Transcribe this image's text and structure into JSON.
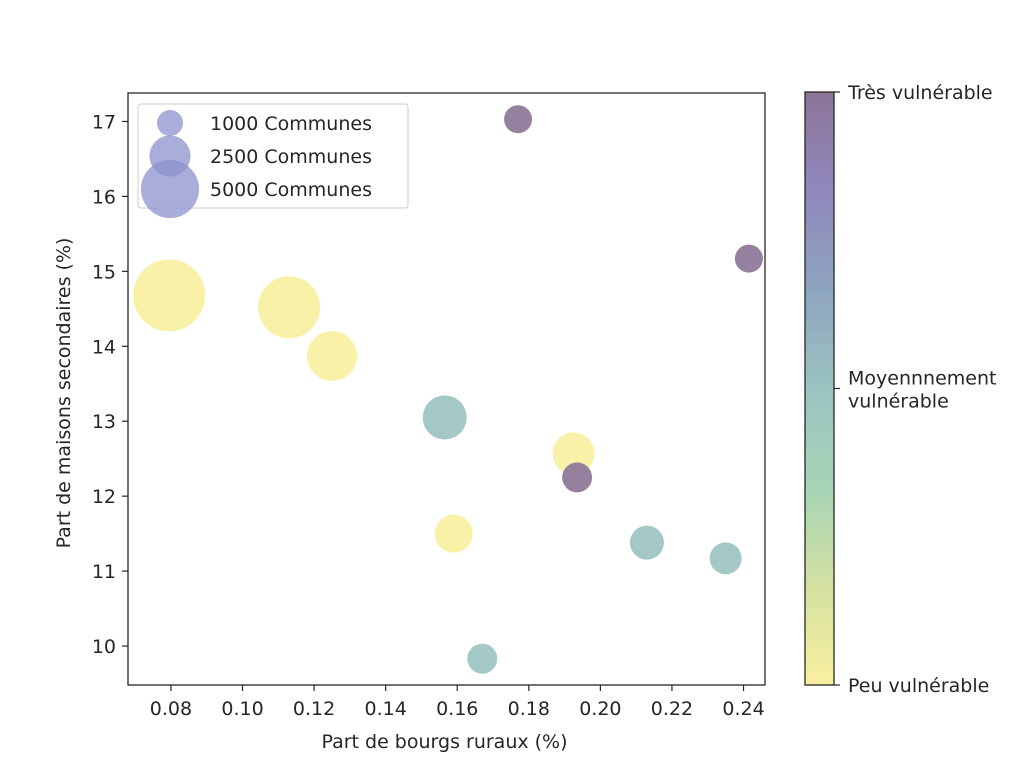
{
  "chart_data": {
    "type": "scatter",
    "title": "",
    "xlabel": "Part de bourgs ruraux (%)",
    "ylabel": "Part de maisons secondaires (%)",
    "xlim": [
      0.068,
      0.246
    ],
    "ylim": [
      9.48,
      17.38
    ],
    "xticks": [
      0.08,
      0.1,
      0.12,
      0.14,
      0.16,
      0.18,
      0.2,
      0.22,
      0.24
    ],
    "xtick_labels": [
      "0.08",
      "0.10",
      "0.12",
      "0.14",
      "0.16",
      "0.18",
      "0.20",
      "0.22",
      "0.24"
    ],
    "yticks": [
      10,
      11,
      12,
      13,
      14,
      15,
      16,
      17
    ],
    "ytick_labels": [
      "10",
      "11",
      "12",
      "13",
      "14",
      "15",
      "16",
      "17"
    ],
    "grid": false,
    "size_legend": {
      "placement": "upper-left",
      "color": "#8c91cc",
      "entries": [
        {
          "label": "1000 Communes",
          "size": 1000
        },
        {
          "label": "2500 Communes",
          "size": 2500
        },
        {
          "label": "5000 Communes",
          "size": 5000
        }
      ]
    },
    "colorbar": {
      "placement": "right",
      "colormap": "viridis (reversed, alpha 0.6)",
      "ticks": [
        {
          "level": 0,
          "label": "Peu vulnérable"
        },
        {
          "level": 0.5,
          "label": " Moyennnement vulnérable",
          "lines": [
            " Moyennnement",
            "vulnérable"
          ]
        },
        {
          "level": 1,
          "label": "Très vulnérable"
        }
      ],
      "stops": [
        "#f9f0a0",
        "#d3e1a1",
        "#a6d4b6",
        "#9bc3c1",
        "#8ea4be",
        "#9088bd",
        "#8c7598"
      ]
    },
    "categories": {
      "peu": {
        "label": "Peu vulnérable",
        "color": "#f9f0a0"
      },
      "moyen": {
        "label": "Moyennnement vulnérable",
        "color": "#9bc3c1"
      },
      "tres": {
        "label": "Très vulnérable",
        "color": "#8c7598"
      }
    },
    "points": [
      {
        "x": 0.0795,
        "y": 14.68,
        "communes": 7670,
        "category": "peu"
      },
      {
        "x": 0.113,
        "y": 14.52,
        "communes": 5690,
        "category": "peu"
      },
      {
        "x": 0.125,
        "y": 13.87,
        "communes": 3700,
        "category": "peu"
      },
      {
        "x": 0.1565,
        "y": 13.05,
        "communes": 2860,
        "category": "moyen"
      },
      {
        "x": 0.1925,
        "y": 12.57,
        "communes": 2610,
        "category": "peu"
      },
      {
        "x": 0.1935,
        "y": 12.25,
        "communes": 1330,
        "category": "tres"
      },
      {
        "x": 0.159,
        "y": 11.5,
        "communes": 2140,
        "category": "peu"
      },
      {
        "x": 0.177,
        "y": 17.03,
        "communes": 1160,
        "category": "tres"
      },
      {
        "x": 0.2415,
        "y": 15.17,
        "communes": 1160,
        "category": "tres"
      },
      {
        "x": 0.213,
        "y": 11.38,
        "communes": 1710,
        "category": "moyen"
      },
      {
        "x": 0.235,
        "y": 11.17,
        "communes": 1515,
        "category": "moyen"
      },
      {
        "x": 0.167,
        "y": 9.83,
        "communes": 1330,
        "category": "moyen"
      }
    ]
  }
}
